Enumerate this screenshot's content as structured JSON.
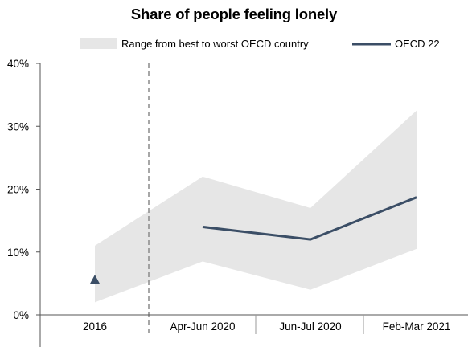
{
  "chart_data": {
    "type": "line",
    "title": "Share of people feeling lonely",
    "categories": [
      "2016",
      "Apr-Jun 2020",
      "Jun-Jul 2020",
      "Feb-Mar 2021"
    ],
    "y_ticks": [
      "0%",
      "10%",
      "20%",
      "30%",
      "40%"
    ],
    "ylim": [
      0,
      40
    ],
    "y_unit": "%",
    "grid": false,
    "legend_position": "top",
    "range_band": {
      "name": "Range from best to worst OECD country",
      "color": "#e6e6e6",
      "values": [
        {
          "x": "2016",
          "low": 2,
          "high": 11
        },
        {
          "x": "Apr-Jun 2020",
          "low": 8.5,
          "high": 22
        },
        {
          "x": "Jun-Jul 2020",
          "low": 4,
          "high": 17
        },
        {
          "x": "Feb-Mar 2021",
          "low": 10.5,
          "high": 32.5
        }
      ]
    },
    "series": [
      {
        "name": "OECD 22",
        "color": "#3b4e66",
        "marker": "triangle",
        "values": [
          {
            "x": "2016",
            "y": 5.5
          },
          {
            "x": "Apr-Jun 2020",
            "y": 14
          },
          {
            "x": "Jun-Jul 2020",
            "y": 12
          },
          {
            "x": "Feb-Mar 2021",
            "y": 18.7
          }
        ]
      }
    ],
    "break_after_category": "2016"
  }
}
